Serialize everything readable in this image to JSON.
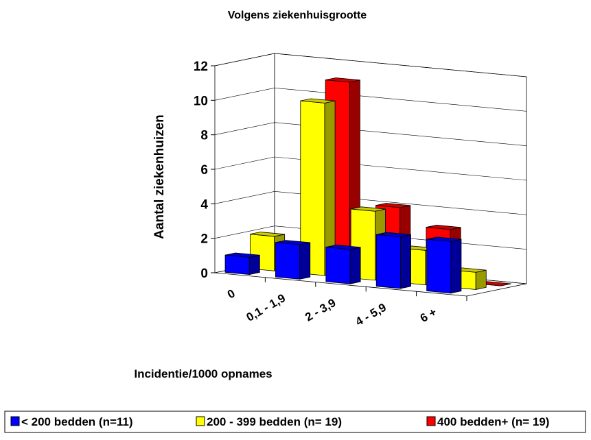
{
  "chart_data": {
    "type": "bar3d",
    "title": "Volgens ziekenhuisgrootte",
    "y_label": "Aantal ziekenhuizen",
    "x_label": "Incidentie/1000 opnames",
    "categories": [
      "0",
      "0,1 - 1,9",
      "2 - 3,9",
      "4 - 5,9",
      "6 +"
    ],
    "series": [
      {
        "name": "< 200 bedden (n=11)",
        "color": "#0000ff",
        "values": [
          1,
          2,
          2,
          3,
          3
        ]
      },
      {
        "name": "200 - 399 bedden (n= 19)",
        "color": "#ffff00",
        "values": [
          2,
          10,
          4,
          2,
          1
        ]
      },
      {
        "name": "400 bedden+ (n= 19)",
        "color": "#ff0000",
        "values": [
          1,
          11,
          4,
          3,
          0
        ]
      }
    ],
    "ylim": [
      0,
      12
    ],
    "yticks": [
      0,
      2,
      4,
      6,
      8,
      10,
      12
    ],
    "grid": true
  }
}
